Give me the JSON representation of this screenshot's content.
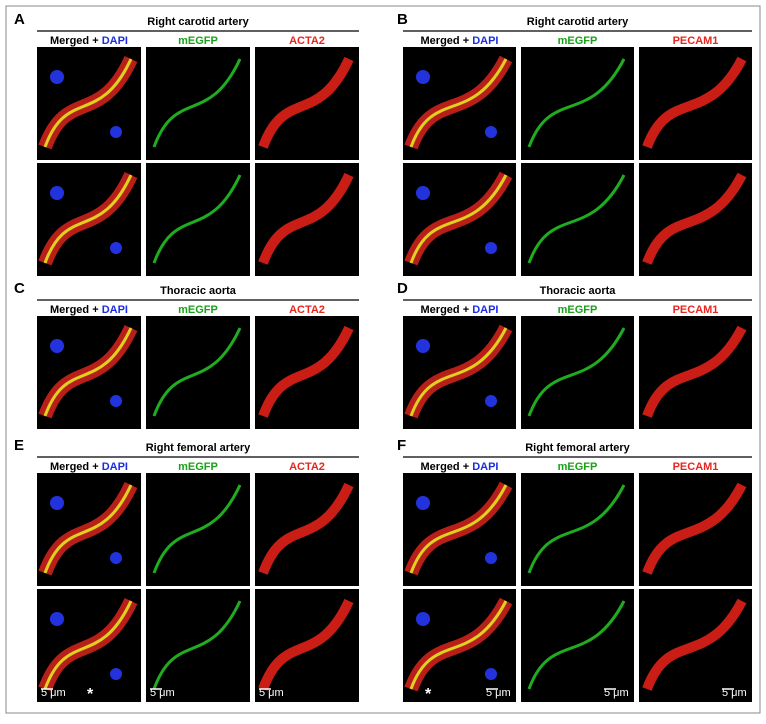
{
  "panels": [
    {
      "letter": "A",
      "title": "Right carotid artery",
      "merged_label": "Merged +",
      "dapi_label": "DAPI",
      "channels": [
        "mEGFP",
        "ACTA2"
      ]
    },
    {
      "letter": "B",
      "title": "Right carotid artery",
      "merged_label": "Merged +",
      "dapi_label": "DAPI",
      "channels": [
        "mEGFP",
        "PECAM1"
      ]
    },
    {
      "letter": "C",
      "title": "Thoracic aorta",
      "merged_label": "Merged +",
      "dapi_label": "DAPI",
      "channels": [
        "mEGFP",
        "ACTA2"
      ]
    },
    {
      "letter": "D",
      "title": "Thoracic aorta",
      "merged_label": "Merged +",
      "dapi_label": "DAPI",
      "channels": [
        "mEGFP",
        "PECAM1"
      ]
    },
    {
      "letter": "E",
      "title": "Right femoral artery",
      "merged_label": "Merged +",
      "dapi_label": "DAPI",
      "channels": [
        "mEGFP",
        "ACTA2"
      ],
      "scale_bar_labels": [
        "5 μm",
        "5 μm",
        "5 μm"
      ],
      "marker": "*"
    },
    {
      "letter": "F",
      "title": "Right femoral artery",
      "merged_label": "Merged +",
      "dapi_label": "DAPI",
      "channels": [
        "mEGFP",
        "PECAM1"
      ],
      "scale_bar_labels": [
        "5 μm",
        "5 μm",
        "5 μm"
      ],
      "marker": "*"
    }
  ]
}
